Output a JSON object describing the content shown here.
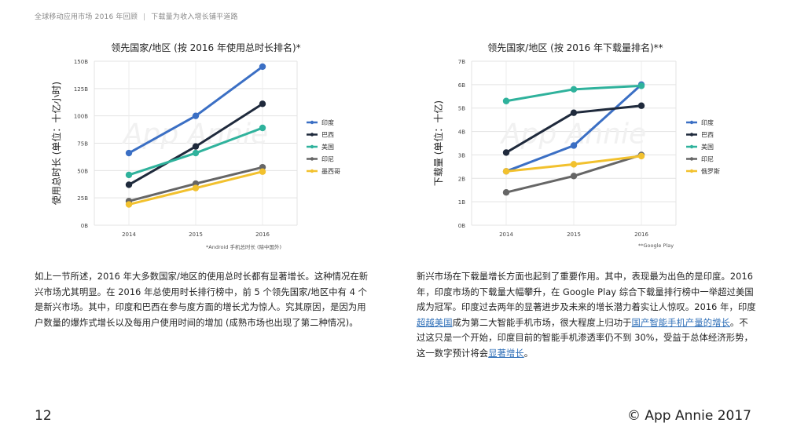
{
  "header": {
    "title": "全球移动应用市场 2016 年回顾",
    "separator": "|",
    "subtitle": "下载量为收入增长铺平道路"
  },
  "watermark": "App Annie",
  "chart_data": [
    {
      "type": "line",
      "title": "领先国家/地区 (按 2016 年使用总时长排名)*",
      "ylabel": "使用总时长 (单位：十亿小时)",
      "xlabel": "",
      "x": [
        "2014",
        "2015",
        "2016"
      ],
      "ylim": [
        0,
        150
      ],
      "yticks": [
        0,
        25,
        50,
        75,
        100,
        125,
        150
      ],
      "yticklabels": [
        "0B",
        "25B",
        "50B",
        "75B",
        "100B",
        "125B",
        "150B"
      ],
      "grid": true,
      "legend_position": "right",
      "series": [
        {
          "name": "印度",
          "color": "#3b6fc4",
          "values": [
            66,
            100,
            145
          ]
        },
        {
          "name": "巴西",
          "color": "#1f2a3c",
          "values": [
            37,
            72,
            111
          ]
        },
        {
          "name": "美国",
          "color": "#2fb29c",
          "values": [
            46,
            66,
            89
          ]
        },
        {
          "name": "印尼",
          "color": "#666666",
          "values": [
            22,
            38,
            53
          ]
        },
        {
          "name": "墨西哥",
          "color": "#f2c12e",
          "values": [
            19,
            34,
            49
          ]
        }
      ],
      "footnote": "*Android 手机总时长 (除中国外)"
    },
    {
      "type": "line",
      "title": "领先国家/地区 (按 2016 年下载量排名)**",
      "ylabel": "下载量 (单位：十亿)",
      "xlabel": "",
      "x": [
        "2014",
        "2015",
        "2016"
      ],
      "ylim": [
        0,
        7
      ],
      "yticks": [
        0,
        1,
        2,
        3,
        4,
        5,
        6,
        7
      ],
      "yticklabels": [
        "0B",
        "1B",
        "2B",
        "3B",
        "4B",
        "5B",
        "6B",
        "7B"
      ],
      "grid": true,
      "legend_position": "right",
      "series": [
        {
          "name": "印度",
          "color": "#3b6fc4",
          "values": [
            2.3,
            3.4,
            6.0
          ]
        },
        {
          "name": "巴西",
          "color": "#1f2a3c",
          "values": [
            3.1,
            4.8,
            5.1
          ]
        },
        {
          "name": "美国",
          "color": "#2fb29c",
          "values": [
            5.3,
            5.8,
            5.95
          ]
        },
        {
          "name": "印尼",
          "color": "#666666",
          "values": [
            1.4,
            2.1,
            3.0
          ]
        },
        {
          "name": "俄罗斯",
          "color": "#f2c12e",
          "values": [
            2.3,
            2.6,
            2.95
          ]
        }
      ],
      "footnote": "**Google Play"
    }
  ],
  "paragraphs": {
    "left": [
      {
        "text": "如上一节所述，2016 年大多数国家/地区的使用总时长都有显著增长。这种情况在新兴市场尤其明显。在 2016 年总使用时长排行榜中，前 5 个领先国家/地区中有 4 个是新兴市场。其中，印度和巴西在参与度方面的增长尤为惊人。究其原因，是因为用户数量的爆炸式增长以及每用户使用时间的增加 (成熟市场也出现了第二种情况)。",
        "link": false
      }
    ],
    "right": [
      {
        "text": "新兴市场在下载量增长方面也起到了重要作用。其中，表现最为出色的是印度。2016 年，印度市场的下载量大幅攀升，在 Google Play 综合下载量排行榜中一举超过美国成为冠军。印度过去两年的显著进步及未来的增长潜力着实让人惊叹。2016 年，印度",
        "link": false
      },
      {
        "text": "超越美国",
        "link": true
      },
      {
        "text": "成为第二大智能手机市场，很大程度上归功于",
        "link": false
      },
      {
        "text": "国产智能手机产量的增长",
        "link": true
      },
      {
        "text": "。不过这只是一个开始，印度目前的智能手机渗透率仍不到 30%，受益于总体经济形势，这一数字预计将会",
        "link": false
      },
      {
        "text": "显著增长",
        "link": true
      },
      {
        "text": "。",
        "link": false
      }
    ]
  },
  "footer": {
    "page_number": "12",
    "copyright": "© App Annie 2017"
  }
}
